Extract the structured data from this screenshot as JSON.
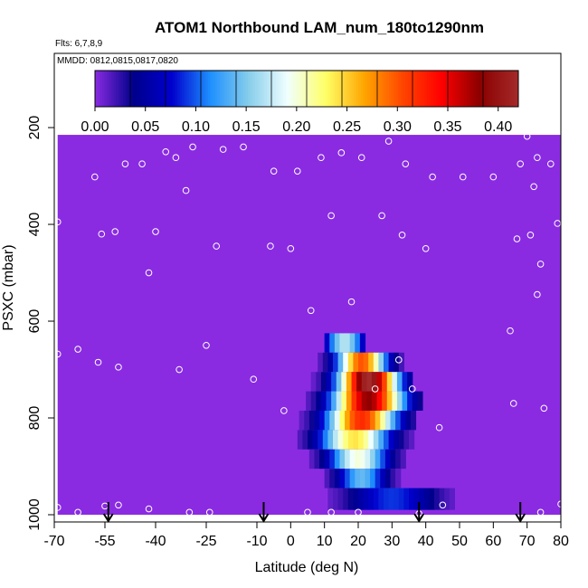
{
  "chart_data": {
    "type": "heatmap",
    "title": "ATOM1 Northbound LAM_num_180to1290nm",
    "flights_note": "Flts: 6,7,8,9",
    "dates_note": "MMDD: 0812,0815,0817,0820",
    "xlabel": "Latitude (deg N)",
    "ylabel": "PSXC (mbar)",
    "xlim": [
      -70,
      80
    ],
    "ylim": [
      1000,
      50
    ],
    "x_ticks": [
      -70,
      -55,
      -40,
      -25,
      -10,
      0,
      10,
      20,
      30,
      40,
      50,
      60,
      70,
      80
    ],
    "x_tick_labels": [
      "-70",
      "-55",
      "-40",
      "-25",
      "-10",
      "0",
      "10",
      "20",
      "30",
      "40",
      "50",
      "60",
      "70",
      "80"
    ],
    "y_ticks": [
      200,
      400,
      600,
      800,
      1000
    ],
    "y_tick_labels": [
      "200",
      "400",
      "600",
      "800",
      "1000"
    ],
    "colorbar": {
      "ticks": [
        0.0,
        0.05,
        0.1,
        0.15,
        0.2,
        0.25,
        0.3,
        0.35,
        0.4
      ],
      "tick_labels": [
        "0.00",
        "0.05",
        "0.10",
        "0.15",
        "0.20",
        "0.25",
        "0.30",
        "0.35",
        "0.40"
      ],
      "range": [
        0.0,
        0.42
      ],
      "colors": [
        "#8A2BE2",
        "#00008B",
        "#0000CD",
        "#1E90FF",
        "#87CEEB",
        "#F0FFFF",
        "#FFFF66",
        "#FFA500",
        "#FF4500",
        "#FF0000",
        "#8B0000",
        "#A52A2A"
      ]
    },
    "data_extent": {
      "lat_min": -69,
      "lat_max": 80,
      "p_top": 215,
      "p_bottom": 1000
    },
    "background_value": 0.0,
    "plume": {
      "rows": [
        {
          "p": [
            625,
            665
          ],
          "lat": [
            10,
            22
          ],
          "peak_lat": 16,
          "peak": 0.17,
          "spread": 4
        },
        {
          "p": [
            665,
            705
          ],
          "lat": [
            5,
            33
          ],
          "peak_lat": 21,
          "peak": 0.3,
          "spread": 5
        },
        {
          "p": [
            705,
            745
          ],
          "lat": [
            0,
            36
          ],
          "peak_lat": 23,
          "peak": 0.42,
          "spread": 6
        },
        {
          "p": [
            745,
            785
          ],
          "lat": [
            -3,
            39
          ],
          "peak_lat": 23,
          "peak": 0.38,
          "spread": 7
        },
        {
          "p": [
            785,
            825
          ],
          "lat": [
            -5,
            37
          ],
          "peak_lat": 21,
          "peak": 0.32,
          "spread": 7
        },
        {
          "p": [
            825,
            865
          ],
          "lat": [
            -10,
            44
          ],
          "peak_lat": 19,
          "peak": 0.24,
          "spread": 7
        },
        {
          "p": [
            865,
            905
          ],
          "lat": [
            -14,
            50
          ],
          "peak_lat": 20,
          "peak": 0.2,
          "spread": 6
        },
        {
          "p": [
            905,
            945
          ],
          "lat": [
            -20,
            58
          ],
          "peak_lat": 21,
          "peak": 0.14,
          "spread": 5
        },
        {
          "p": [
            945,
            990
          ],
          "lat": [
            5,
            68
          ],
          "peak_lat": 30,
          "peak": 0.09,
          "spread": 9
        }
      ]
    },
    "sample_points": [
      {
        "lat": -69,
        "p": 395
      },
      {
        "lat": -69,
        "p": 668
      },
      {
        "lat": -69,
        "p": 985
      },
      {
        "lat": -63,
        "p": 658
      },
      {
        "lat": -63,
        "p": 995
      },
      {
        "lat": -58,
        "p": 302
      },
      {
        "lat": -56,
        "p": 420
      },
      {
        "lat": -57,
        "p": 685
      },
      {
        "lat": -55,
        "p": 982
      },
      {
        "lat": -52,
        "p": 415
      },
      {
        "lat": -51,
        "p": 695
      },
      {
        "lat": -51,
        "p": 980
      },
      {
        "lat": -49,
        "p": 275
      },
      {
        "lat": -44,
        "p": 275
      },
      {
        "lat": -42,
        "p": 500
      },
      {
        "lat": -40,
        "p": 415
      },
      {
        "lat": -42,
        "p": 988
      },
      {
        "lat": -37,
        "p": 250
      },
      {
        "lat": -34,
        "p": 262
      },
      {
        "lat": -33,
        "p": 700
      },
      {
        "lat": -31,
        "p": 330
      },
      {
        "lat": -30,
        "p": 995
      },
      {
        "lat": -29,
        "p": 240
      },
      {
        "lat": -25,
        "p": 650
      },
      {
        "lat": -24,
        "p": 995
      },
      {
        "lat": -22,
        "p": 445
      },
      {
        "lat": -20,
        "p": 245
      },
      {
        "lat": -14,
        "p": 240
      },
      {
        "lat": -11,
        "p": 720
      },
      {
        "lat": -6,
        "p": 445
      },
      {
        "lat": -5,
        "p": 290
      },
      {
        "lat": -2,
        "p": 785
      },
      {
        "lat": 0,
        "p": 450
      },
      {
        "lat": 2,
        "p": 290
      },
      {
        "lat": 5,
        "p": 995
      },
      {
        "lat": 6,
        "p": 578
      },
      {
        "lat": 9,
        "p": 262
      },
      {
        "lat": 12,
        "p": 382
      },
      {
        "lat": 12,
        "p": 995
      },
      {
        "lat": 15,
        "p": 252
      },
      {
        "lat": 18,
        "p": 560
      },
      {
        "lat": 20,
        "p": 995
      },
      {
        "lat": 21,
        "p": 262
      },
      {
        "lat": 25,
        "p": 740
      },
      {
        "lat": 27,
        "p": 382
      },
      {
        "lat": 29,
        "p": 228
      },
      {
        "lat": 32,
        "p": 680
      },
      {
        "lat": 33,
        "p": 422
      },
      {
        "lat": 34,
        "p": 275
      },
      {
        "lat": 36,
        "p": 740
      },
      {
        "lat": 38,
        "p": 998
      },
      {
        "lat": 40,
        "p": 450
      },
      {
        "lat": 42,
        "p": 302
      },
      {
        "lat": 45,
        "p": 980
      },
      {
        "lat": 44,
        "p": 820
      },
      {
        "lat": 51,
        "p": 302
      },
      {
        "lat": 60,
        "p": 302
      },
      {
        "lat": 65,
        "p": 620
      },
      {
        "lat": 66,
        "p": 770
      },
      {
        "lat": 67,
        "p": 430
      },
      {
        "lat": 68,
        "p": 275
      },
      {
        "lat": 70,
        "p": 218
      },
      {
        "lat": 71,
        "p": 422
      },
      {
        "lat": 72,
        "p": 322
      },
      {
        "lat": 73,
        "p": 262
      },
      {
        "lat": 73,
        "p": 545
      },
      {
        "lat": 74,
        "p": 482
      },
      {
        "lat": 75,
        "p": 780
      },
      {
        "lat": 74,
        "p": 995
      },
      {
        "lat": 77,
        "p": 275
      },
      {
        "lat": 79,
        "p": 398
      },
      {
        "lat": 80,
        "p": 978
      }
    ],
    "flight_arrows_lat": [
      -54,
      -8,
      38,
      68
    ]
  }
}
